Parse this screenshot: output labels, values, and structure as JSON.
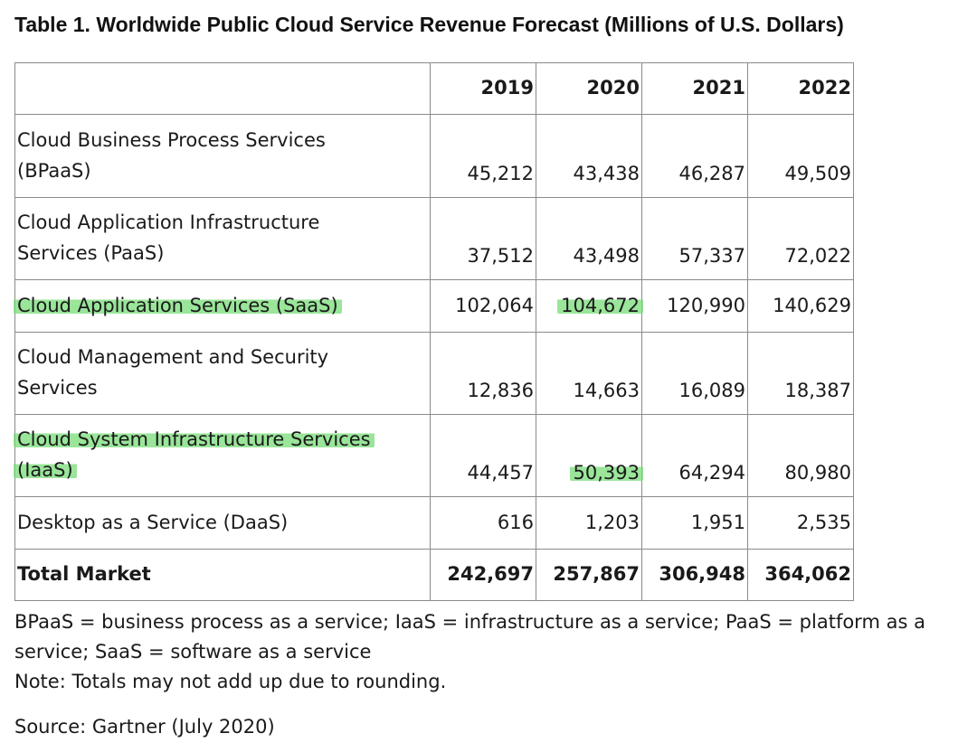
{
  "title": "Table 1. Worldwide Public Cloud Service Revenue Forecast (Millions of U.S. Dollars)",
  "table": {
    "columns": [
      "",
      "2019",
      "2020",
      "2021",
      "2022"
    ],
    "rows": [
      {
        "label_line1": "Cloud Business Process Services",
        "label_line2": "(BPaaS)",
        "values": [
          "45,212",
          "43,438",
          "46,287",
          "49,509"
        ]
      },
      {
        "label_line1": "Cloud Application Infrastructure",
        "label_line2": "Services (PaaS)",
        "values": [
          "37,512",
          "43,498",
          "57,337",
          "72,022"
        ]
      },
      {
        "label_line1": "Cloud Application Services (SaaS)",
        "values": [
          "102,064",
          "104,672",
          "120,990",
          "140,629"
        ],
        "highlighted": true
      },
      {
        "label_line1": "Cloud Management and Security",
        "label_line2": "Services",
        "values": [
          "12,836",
          "14,663",
          "16,089",
          "18,387"
        ]
      },
      {
        "label_line1": "Cloud System Infrastructure Services",
        "label_line2": "(IaaS)",
        "values": [
          "44,457",
          "50,393",
          "64,294",
          "80,980"
        ],
        "highlighted": true
      },
      {
        "label_line1": "Desktop as a Service (DaaS)",
        "values": [
          "616",
          "1,203",
          "1,951",
          "2,535"
        ]
      }
    ],
    "total": {
      "label": "Total Market",
      "values": [
        "242,697",
        "257,867",
        "306,948",
        "364,062"
      ]
    }
  },
  "notes": {
    "line1": "BPaaS = business process as a service; IaaS = infrastructure as a service; PaaS = platform as a",
    "line2": "service; SaaS = software as a service",
    "line3": "Note: Totals may not add up due to rounding."
  },
  "source": "Source: Gartner (July 2020)",
  "highlight_color": "#78dc78"
}
